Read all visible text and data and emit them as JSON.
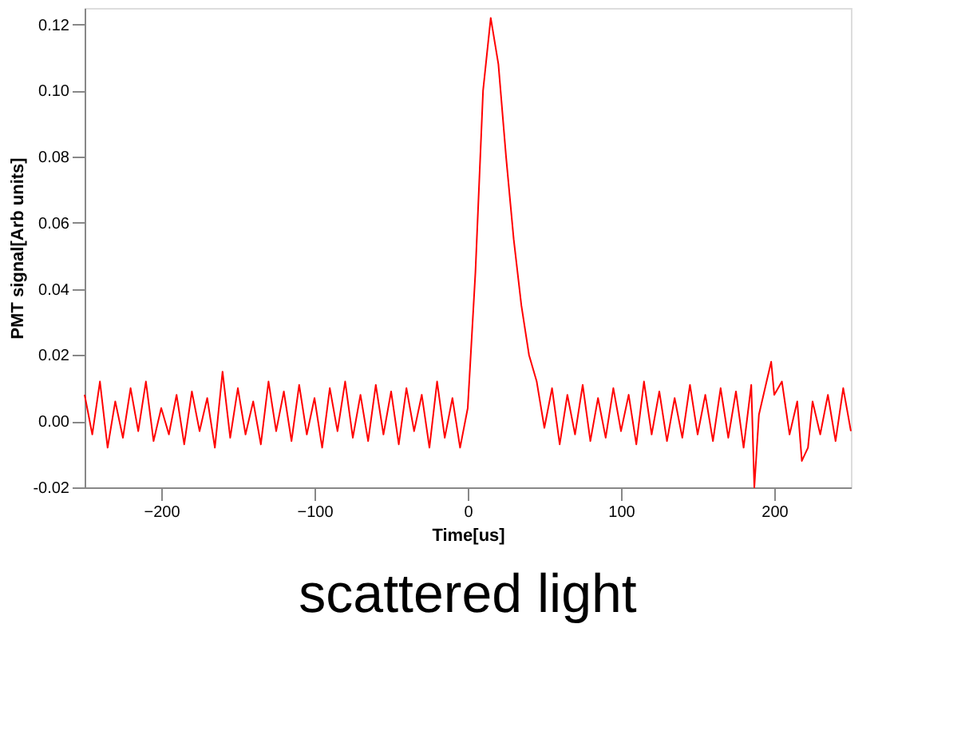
{
  "chart_data": {
    "type": "line",
    "xlabel": "Time[us]",
    "ylabel": "PMT signal[Arb units]",
    "annotations": [
      "scattered light"
    ],
    "xlim": [
      -250,
      250
    ],
    "xticks": [
      -200,
      -100,
      0,
      100,
      200
    ],
    "ylim": [
      -0.02,
      0.125
    ],
    "yticks": [
      {
        "value": -0.02,
        "label": "-0.02"
      },
      {
        "value": 0,
        "label": "0.00"
      },
      {
        "value": 0.02,
        "label": "0.02"
      },
      {
        "value": 0.04,
        "label": "0.04"
      },
      {
        "value": 0.06,
        "label": "0.06"
      },
      {
        "value": 0.08,
        "label": "0.08"
      },
      {
        "value": 0.1,
        "label": "0.10"
      },
      {
        "value": 0.12,
        "label": "0.12"
      }
    ],
    "grid": false,
    "legend": false,
    "marker": "none",
    "line_style": "solid",
    "x": [
      -250,
      -245,
      -240,
      -235,
      -230,
      -225,
      -220,
      -215,
      -210,
      -205,
      -200,
      -195,
      -190,
      -185,
      -180,
      -175,
      -170,
      -165,
      -160,
      -155,
      -150,
      -145,
      -140,
      -135,
      -130,
      -125,
      -120,
      -115,
      -110,
      -105,
      -100,
      -95,
      -90,
      -85,
      -80,
      -75,
      -70,
      -65,
      -60,
      -55,
      -50,
      -45,
      -40,
      -35,
      -30,
      -25,
      -20,
      -15,
      -10,
      -5,
      0,
      5,
      10,
      15,
      20,
      25,
      30,
      35,
      40,
      45,
      50,
      55,
      60,
      65,
      70,
      75,
      80,
      85,
      90,
      95,
      100,
      105,
      110,
      115,
      120,
      125,
      130,
      135,
      140,
      145,
      150,
      155,
      160,
      165,
      170,
      175,
      180,
      185,
      187,
      190,
      195,
      198,
      200,
      205,
      210,
      215,
      218,
      222,
      225,
      230,
      235,
      240,
      245,
      250
    ],
    "series": [
      {
        "color": "#ff0000",
        "values": [
          0.008,
          -0.004,
          0.012,
          -0.008,
          0.006,
          -0.005,
          0.01,
          -0.003,
          0.012,
          -0.006,
          0.004,
          -0.004,
          0.008,
          -0.007,
          0.009,
          -0.003,
          0.007,
          -0.008,
          0.015,
          -0.005,
          0.01,
          -0.004,
          0.006,
          -0.007,
          0.012,
          -0.003,
          0.009,
          -0.006,
          0.011,
          -0.004,
          0.007,
          -0.008,
          0.01,
          -0.003,
          0.012,
          -0.005,
          0.008,
          -0.006,
          0.011,
          -0.004,
          0.009,
          -0.007,
          0.01,
          -0.003,
          0.008,
          -0.008,
          0.012,
          -0.005,
          0.007,
          -0.008,
          0.004,
          0.045,
          0.1,
          0.122,
          0.108,
          0.08,
          0.055,
          0.035,
          0.02,
          0.012,
          -0.002,
          0.01,
          -0.007,
          0.008,
          -0.004,
          0.011,
          -0.006,
          0.007,
          -0.005,
          0.01,
          -0.003,
          0.008,
          -0.007,
          0.012,
          -0.004,
          0.009,
          -0.006,
          0.007,
          -0.005,
          0.011,
          -0.004,
          0.008,
          -0.006,
          0.01,
          -0.005,
          0.009,
          -0.008,
          0.011,
          -0.02,
          0.002,
          0.012,
          0.018,
          0.008,
          0.012,
          -0.004,
          0.006,
          -0.012,
          -0.008,
          0.006,
          -0.004,
          0.008,
          -0.006,
          0.01,
          -0.003
        ]
      }
    ]
  }
}
